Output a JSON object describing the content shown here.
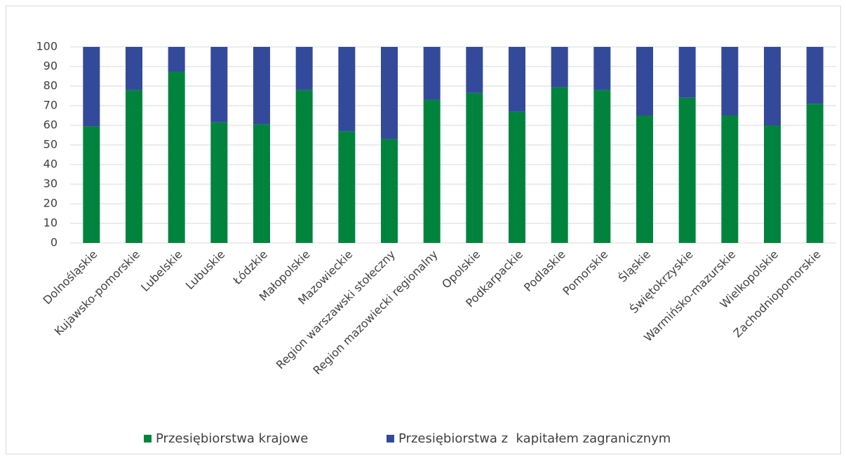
{
  "chart_data": {
    "type": "stacked_bar",
    "categories": [
      "Dolnośląskie",
      "Kujawsko-pomorskie",
      "Lubelskie",
      "Lubuskie",
      "Łódzkie",
      "Małopolskie",
      "Mazowieckie",
      "Region warszawski stołeczny",
      "Region mazowiecki regionalny",
      "Opolskie",
      "Podkarpackie",
      "Podlaskie",
      "Pomorskie",
      "Śląskie",
      "Świętokrzyskie",
      "Warmińsko-mazurskie",
      "Wielkopolskie",
      "Zachodniopomorskie"
    ],
    "series": [
      {
        "name": "Przesiębiorstwa krajowe",
        "color": "#00843d",
        "values": [
          59.5,
          78,
          87.5,
          61.5,
          60.5,
          78,
          57,
          53,
          73,
          76.5,
          67,
          79.5,
          78,
          65,
          74,
          65,
          60,
          71
        ]
      },
      {
        "name": "Przesiębiorstwa z  kapitałem zagranicznym",
        "color": "#334a9a",
        "values": [
          40.5,
          22,
          12.5,
          38.5,
          39.5,
          22,
          43,
          47,
          27,
          23.5,
          33,
          20.5,
          22,
          35,
          26,
          35,
          40,
          29
        ]
      }
    ],
    "ylim": [
      0,
      100
    ],
    "yticks": [
      0,
      10,
      20,
      30,
      40,
      50,
      60,
      70,
      80,
      90,
      100
    ],
    "grid": true,
    "legend": "bottom"
  }
}
